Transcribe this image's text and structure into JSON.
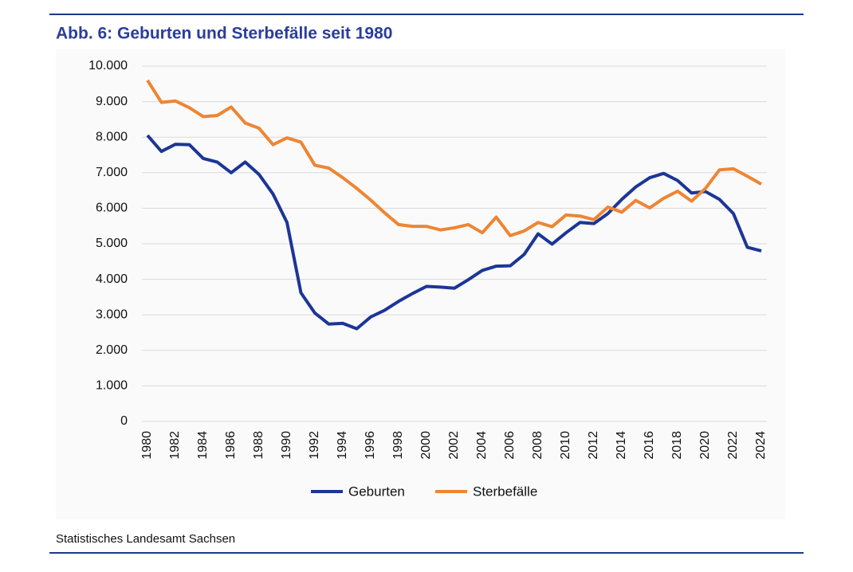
{
  "chart_data": {
    "type": "line",
    "title": "Abb. 6: Geburten und Sterbefälle seit 1980",
    "source": "Statistisches Landesamt Sachsen",
    "x": [
      1980,
      1981,
      1982,
      1983,
      1984,
      1985,
      1986,
      1987,
      1988,
      1989,
      1990,
      1991,
      1992,
      1993,
      1994,
      1995,
      1996,
      1997,
      1998,
      1999,
      2000,
      2001,
      2002,
      2003,
      2004,
      2005,
      2006,
      2007,
      2008,
      2009,
      2010,
      2011,
      2012,
      2013,
      2014,
      2015,
      2016,
      2017,
      2018,
      2019,
      2020,
      2021,
      2022,
      2023,
      2024
    ],
    "xlim": [
      1980,
      2024
    ],
    "xticks": [
      1980,
      1982,
      1984,
      1986,
      1988,
      1990,
      1992,
      1994,
      1996,
      1998,
      2000,
      2002,
      2004,
      2006,
      2008,
      2010,
      2012,
      2014,
      2016,
      2018,
      2020,
      2022,
      2024
    ],
    "ylim": [
      0,
      10000
    ],
    "yticks": [
      0,
      {
        "value": 1000,
        "label": "1.000"
      },
      {
        "value": 2000,
        "label": "2.000"
      },
      {
        "value": 3000,
        "label": "3.000"
      },
      {
        "value": 4000,
        "label": "4.000"
      },
      {
        "value": 5000,
        "label": "5.000"
      },
      {
        "value": 6000,
        "label": "6.000"
      },
      {
        "value": 7000,
        "label": "7.000"
      },
      {
        "value": 8000,
        "label": "8.000"
      },
      {
        "value": 9000,
        "label": "9.000"
      },
      {
        "value": 10000,
        "label": "10.000"
      }
    ],
    "grid": true,
    "legend": "bottom",
    "series": [
      {
        "name": "Geburten",
        "color": "#1c3696",
        "values": [
          8050,
          7600,
          7800,
          7790,
          7400,
          7300,
          7000,
          7300,
          6950,
          6400,
          5600,
          3620,
          3050,
          2740,
          2760,
          2610,
          2940,
          3130,
          3380,
          3600,
          3800,
          3780,
          3750,
          3990,
          4250,
          4370,
          4380,
          4700,
          5280,
          4990,
          5310,
          5600,
          5570,
          5850,
          6250,
          6600,
          6860,
          6980,
          6780,
          6430,
          6470,
          6250,
          5850,
          4900,
          4800
        ]
      },
      {
        "name": "Sterbefälle",
        "color": "#ee8533",
        "values": [
          9600,
          8980,
          9020,
          8830,
          8580,
          8610,
          8850,
          8400,
          8250,
          7790,
          7980,
          7860,
          7210,
          7130,
          6860,
          6560,
          6230,
          5870,
          5540,
          5490,
          5490,
          5390,
          5450,
          5540,
          5310,
          5750,
          5230,
          5360,
          5600,
          5480,
          5810,
          5780,
          5680,
          6030,
          5890,
          6220,
          6010,
          6280,
          6480,
          6200,
          6560,
          7080,
          7110,
          6900,
          6680
        ]
      }
    ]
  }
}
